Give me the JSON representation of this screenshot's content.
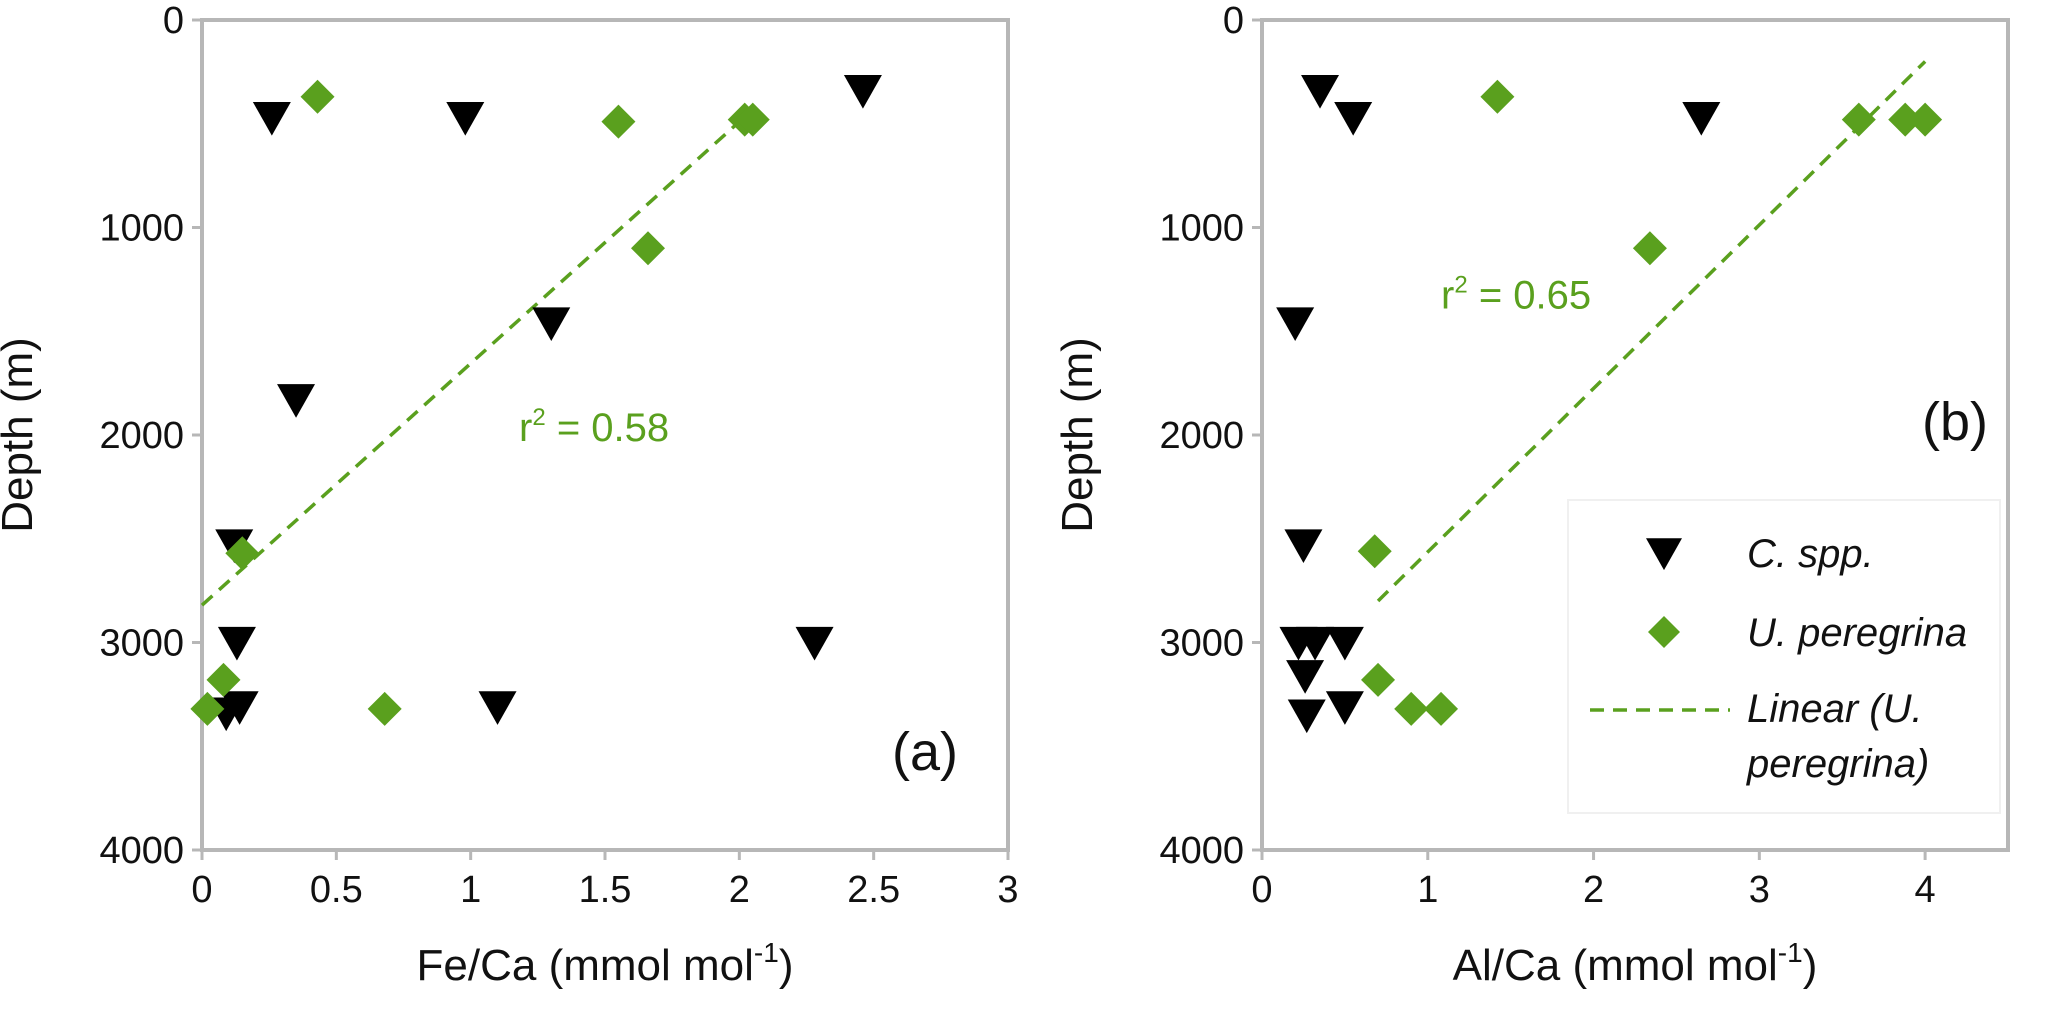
{
  "colors": {
    "frame": "#b7b7b7",
    "spp": "#000000",
    "peregrina": "#5aa01e",
    "text": "#111111"
  },
  "legend": {
    "placement": "lower-right of panel b",
    "items": [
      {
        "name": "C. spp.",
        "marker": "triangle-down-icon"
      },
      {
        "name": "U. peregrina",
        "marker": "diamond-icon"
      },
      {
        "name": "Linear (U. peregrina)",
        "lines": [
          "Linear (U.",
          "peregrina)"
        ],
        "marker": "dashed-line-icon"
      }
    ]
  },
  "chart_data": [
    {
      "type": "scatter",
      "panel": "(a)",
      "xlabel": "Fe/Ca (mmol mol",
      "xlabel_sup": "-1",
      "xlabel_end": ")",
      "ylabel": "Depth (m)",
      "xlim": [
        0,
        3
      ],
      "ylim": [
        0,
        4000
      ],
      "y_inverted": true,
      "xticks": [
        "0",
        "0.5",
        "1",
        "1.5",
        "2",
        "2.5",
        "3"
      ],
      "yticks": [
        "0",
        "1000",
        "2000",
        "3000",
        "4000"
      ],
      "grid": false,
      "series": [
        {
          "name": "C. spp.",
          "marker": "triangle-down",
          "points": [
            [
              0.26,
              470
            ],
            [
              0.98,
              470
            ],
            [
              2.46,
              340
            ],
            [
              1.3,
              1460
            ],
            [
              0.35,
              1830
            ],
            [
              0.12,
              2530
            ],
            [
              0.13,
              3000
            ],
            [
              2.28,
              3000
            ],
            [
              0.09,
              3340
            ],
            [
              0.14,
              3310
            ],
            [
              1.1,
              3310
            ]
          ]
        },
        {
          "name": "U. peregrina",
          "marker": "diamond",
          "points": [
            [
              0.43,
              370
            ],
            [
              1.55,
              490
            ],
            [
              2.02,
              480
            ],
            [
              2.05,
              480
            ],
            [
              1.66,
              1100
            ],
            [
              0.15,
              2570
            ],
            [
              0.08,
              3180
            ],
            [
              0.02,
              3320
            ],
            [
              0.68,
              3320
            ]
          ]
        }
      ],
      "trendline": {
        "name": "Linear (U. peregrina)",
        "x": [
          0,
          2.0
        ],
        "y": [
          2820,
          490
        ]
      },
      "annotation": {
        "r2_prefix": "r",
        "r2_sup": "2",
        "r2_rest": " = 0.58",
        "x": 1.18,
        "y": 2030
      }
    },
    {
      "type": "scatter",
      "panel": "(b)",
      "xlabel": "Al/Ca (mmol mol",
      "xlabel_sup": "-1",
      "xlabel_end": ")",
      "ylabel": "Depth (m)",
      "xlim": [
        0,
        4.5
      ],
      "ylim": [
        0,
        4000
      ],
      "y_inverted": true,
      "xticks": [
        "0",
        "1",
        "2",
        "3",
        "4"
      ],
      "yticks": [
        "0",
        "1000",
        "2000",
        "3000",
        "4000"
      ],
      "grid": false,
      "series": [
        {
          "name": "C. spp.",
          "marker": "triangle-down",
          "points": [
            [
              0.35,
              340
            ],
            [
              0.55,
              470
            ],
            [
              2.65,
              470
            ],
            [
              0.2,
              1460
            ],
            [
              0.25,
              2530
            ],
            [
              0.22,
              3000
            ],
            [
              0.32,
              3000
            ],
            [
              0.5,
              3000
            ],
            [
              0.26,
              3160
            ],
            [
              0.27,
              3350
            ],
            [
              0.5,
              3310
            ]
          ]
        },
        {
          "name": "U. peregrina",
          "marker": "diamond",
          "points": [
            [
              1.42,
              370
            ],
            [
              3.6,
              480
            ],
            [
              3.88,
              480
            ],
            [
              4.0,
              480
            ],
            [
              2.34,
              1100
            ],
            [
              0.68,
              2560
            ],
            [
              0.7,
              3180
            ],
            [
              0.9,
              3320
            ],
            [
              1.08,
              3320
            ]
          ]
        }
      ],
      "trendline": {
        "name": "Linear (U. peregrina)",
        "x": [
          0.7,
          4.0
        ],
        "y": [
          2800,
          200
        ]
      },
      "annotation": {
        "r2_prefix": "r",
        "r2_sup": "2",
        "r2_rest": " = 0.65",
        "x": 1.08,
        "y": 1390
      }
    }
  ]
}
